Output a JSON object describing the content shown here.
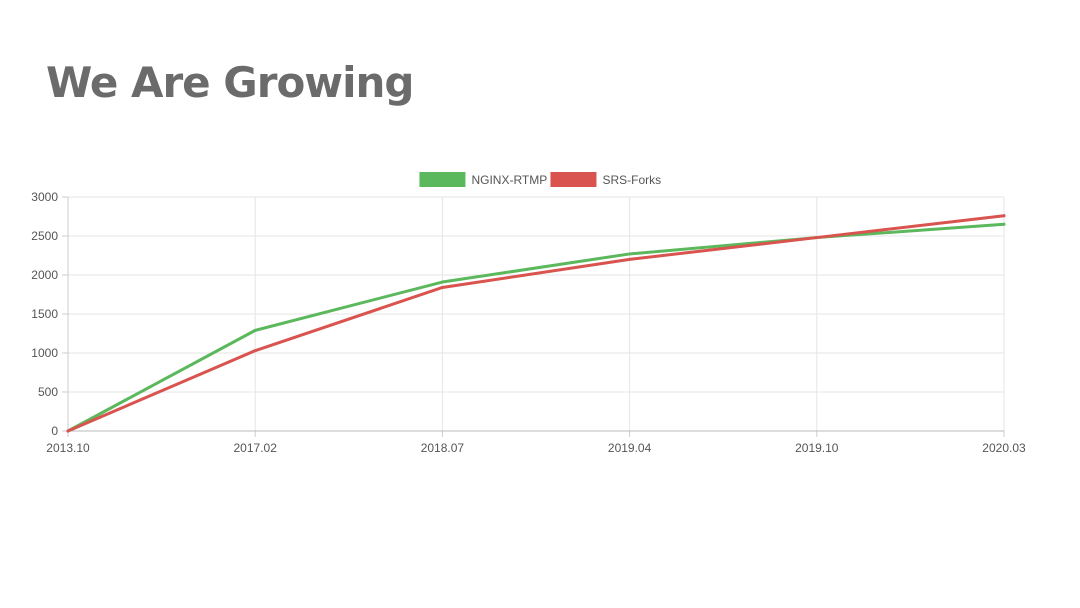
{
  "slide": {
    "title": "We Are Growing"
  },
  "chart_data": {
    "type": "line",
    "categories": [
      "2013.10",
      "2017.02",
      "2018.07",
      "2019.04",
      "2019.10",
      "2020.03"
    ],
    "series": [
      {
        "name": "NGINX-RTMP",
        "color": "#5cb85c",
        "values": [
          0,
          1290,
          1910,
          2270,
          2480,
          2650
        ]
      },
      {
        "name": "SRS-Forks",
        "color": "#d9534f",
        "values": [
          0,
          1030,
          1840,
          2200,
          2480,
          2760
        ]
      }
    ],
    "ylim": [
      0,
      3000
    ],
    "yticks": [
      "0",
      "500",
      "1000",
      "1500",
      "2000",
      "2500",
      "3000"
    ],
    "legend": "top-center",
    "grid": true,
    "xlabel": "",
    "ylabel": ""
  }
}
